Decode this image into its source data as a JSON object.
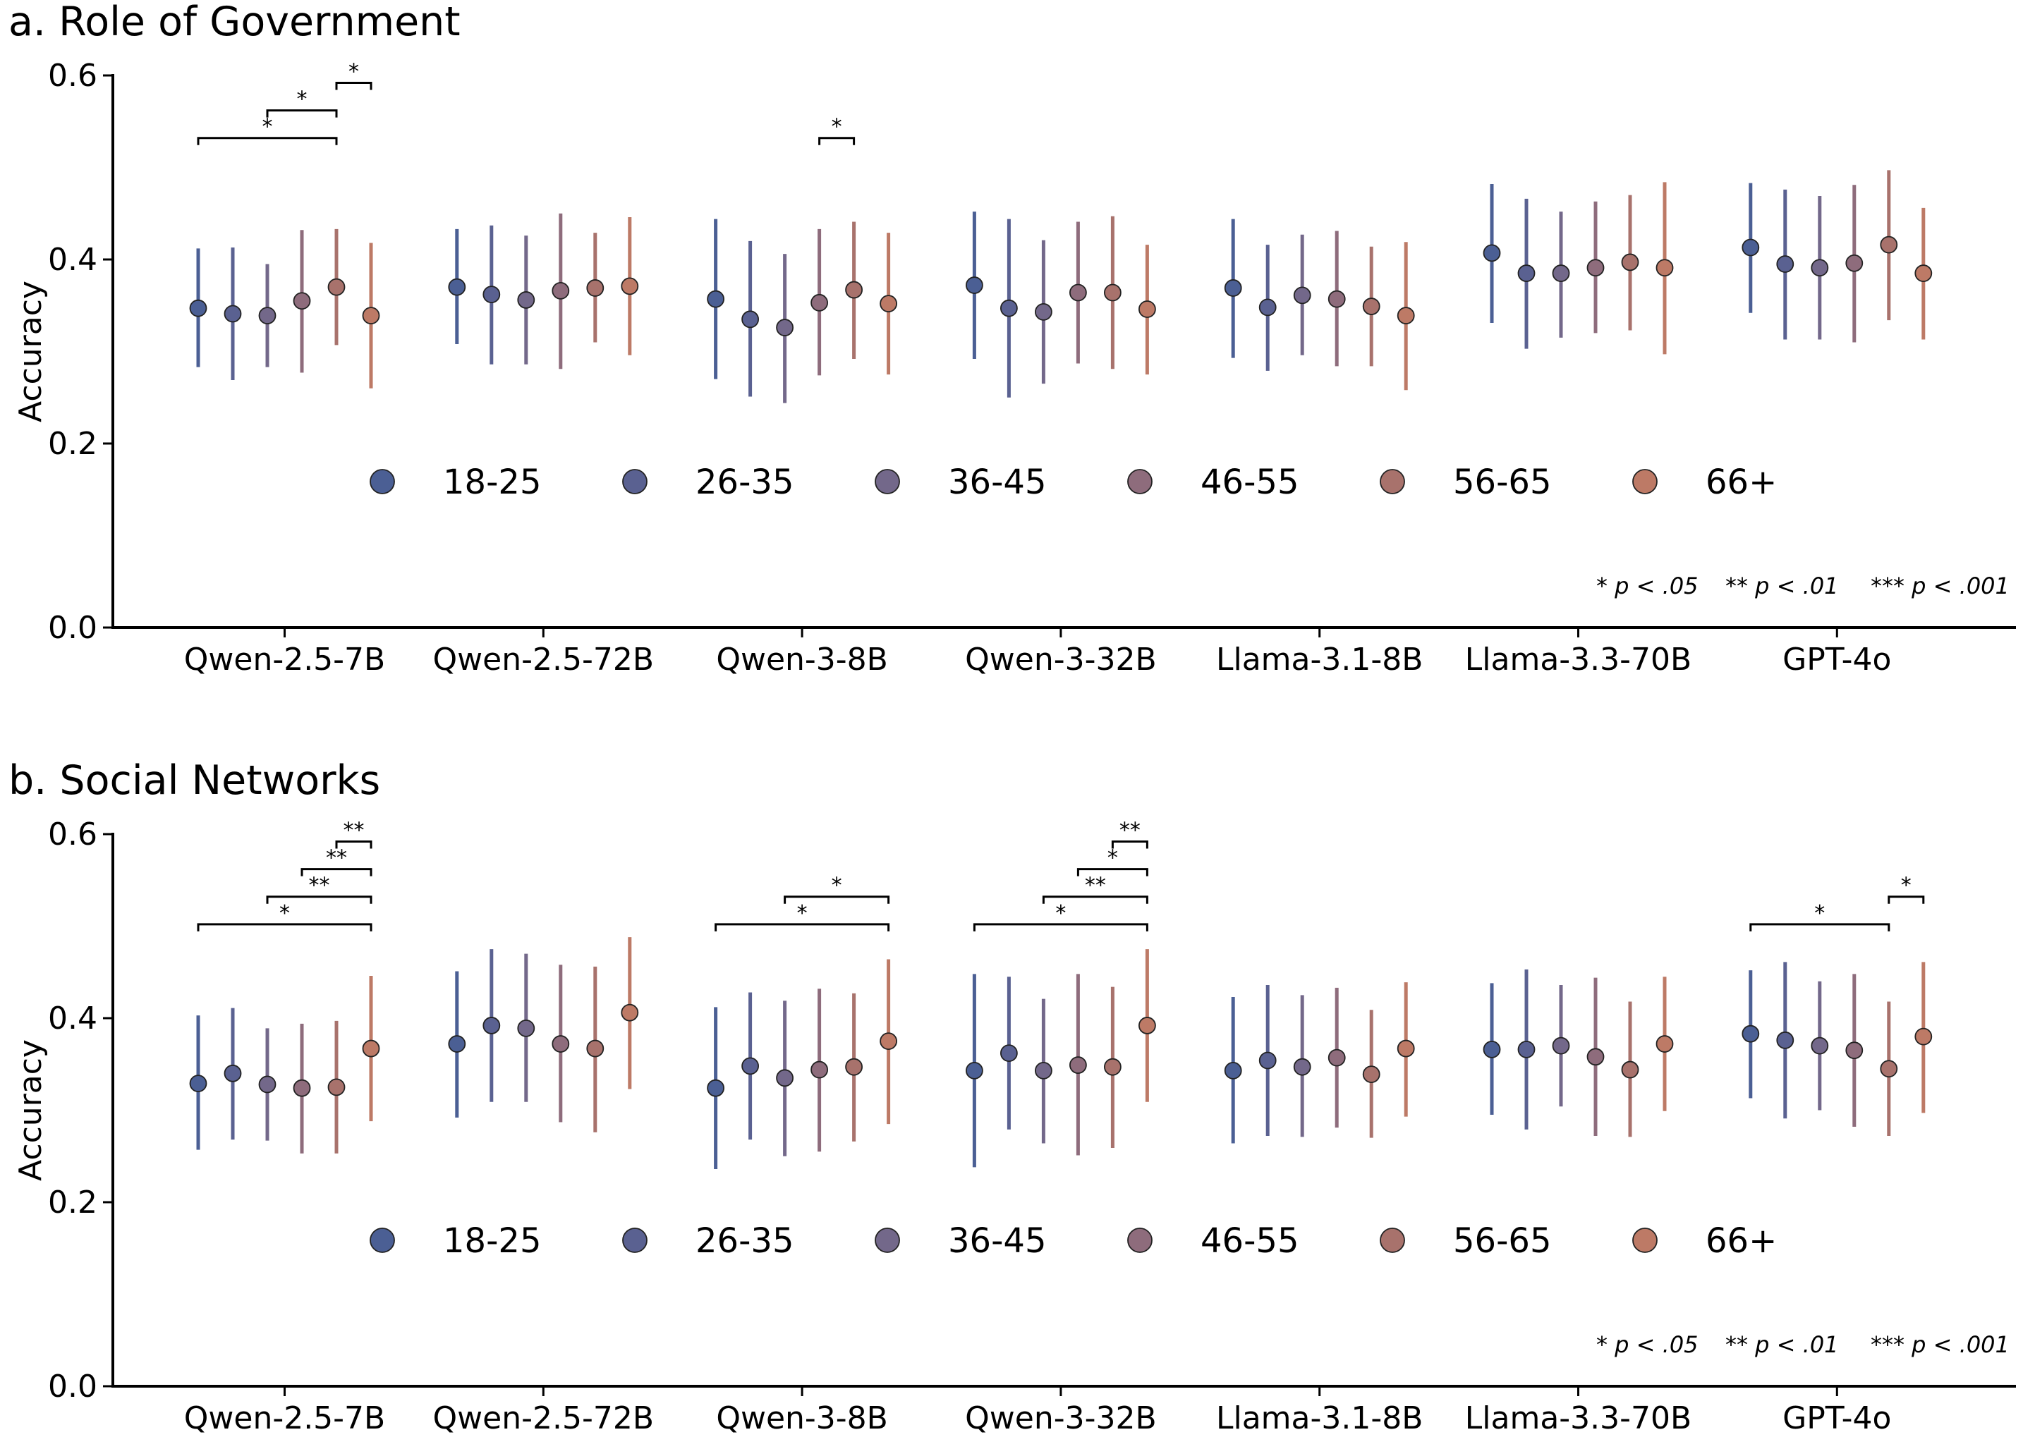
{
  "legend": {
    "groups": [
      "18-25",
      "26-35",
      "36-45",
      "46-55",
      "56-65",
      "66+"
    ],
    "colors": [
      "#4b5f94",
      "#5a6191",
      "#73688a",
      "#8e6c7c",
      "#a8726c",
      "#bd7a66"
    ]
  },
  "significance_note": [
    {
      "stars": "*",
      "text": "p < .05"
    },
    {
      "stars": "**",
      "text": "p < .01"
    },
    {
      "stars": "***",
      "text": "p < .001"
    }
  ],
  "chart_data": [
    {
      "type": "scatter",
      "title": "a. Role of Government",
      "ylabel": "Accuracy",
      "ylim": [
        0,
        0.6
      ],
      "yticks": [
        "0.0",
        "0.2",
        "0.4",
        "0.6"
      ],
      "ytick_values": [
        0,
        0.2,
        0.4,
        0.6
      ],
      "categories": [
        "Qwen-2.5-7B",
        "Qwen-2.5-72B",
        "Qwen-3-8B",
        "Qwen-3-32B",
        "Llama-3.1-8B",
        "Llama-3.3-70B",
        "GPT-4o"
      ],
      "series": [
        {
          "name": "18-25",
          "values": [
            0.347,
            0.37,
            0.357,
            0.372,
            0.369,
            0.407,
            0.413
          ],
          "lower": [
            0.283,
            0.308,
            0.27,
            0.292,
            0.293,
            0.331,
            0.342
          ],
          "upper": [
            0.412,
            0.433,
            0.444,
            0.452,
            0.444,
            0.482,
            0.483
          ]
        },
        {
          "name": "26-35",
          "values": [
            0.341,
            0.362,
            0.335,
            0.347,
            0.348,
            0.385,
            0.395
          ],
          "lower": [
            0.269,
            0.286,
            0.251,
            0.25,
            0.279,
            0.303,
            0.313
          ],
          "upper": [
            0.413,
            0.437,
            0.42,
            0.444,
            0.416,
            0.466,
            0.476
          ]
        },
        {
          "name": "36-45",
          "values": [
            0.339,
            0.356,
            0.326,
            0.343,
            0.361,
            0.385,
            0.391
          ],
          "lower": [
            0.283,
            0.286,
            0.244,
            0.265,
            0.296,
            0.315,
            0.313
          ],
          "upper": [
            0.395,
            0.426,
            0.406,
            0.421,
            0.427,
            0.452,
            0.469
          ]
        },
        {
          "name": "46-55",
          "values": [
            0.355,
            0.366,
            0.353,
            0.364,
            0.357,
            0.391,
            0.396
          ],
          "lower": [
            0.277,
            0.281,
            0.274,
            0.287,
            0.284,
            0.32,
            0.31
          ],
          "upper": [
            0.432,
            0.45,
            0.433,
            0.441,
            0.431,
            0.463,
            0.481
          ]
        },
        {
          "name": "56-65",
          "values": [
            0.37,
            0.369,
            0.367,
            0.364,
            0.349,
            0.397,
            0.416
          ],
          "lower": [
            0.307,
            0.31,
            0.292,
            0.281,
            0.284,
            0.323,
            0.334
          ],
          "upper": [
            0.433,
            0.429,
            0.441,
            0.447,
            0.414,
            0.47,
            0.497
          ]
        },
        {
          "name": "66+",
          "values": [
            0.339,
            0.371,
            0.352,
            0.346,
            0.339,
            0.391,
            0.385
          ],
          "lower": [
            0.26,
            0.296,
            0.275,
            0.275,
            0.258,
            0.297,
            0.313
          ],
          "upper": [
            0.418,
            0.446,
            0.429,
            0.416,
            0.419,
            0.484,
            0.456
          ]
        }
      ],
      "significance": [
        {
          "category": "Qwen-2.5-7B",
          "from": "18-25",
          "to": "56-65",
          "label": "*",
          "level": 0.532
        },
        {
          "category": "Qwen-2.5-7B",
          "from": "36-45",
          "to": "56-65",
          "label": "*",
          "level": 0.562
        },
        {
          "category": "Qwen-2.5-7B",
          "from": "56-65",
          "to": "66+",
          "label": "*",
          "level": 0.592
        },
        {
          "category": "Qwen-3-8B",
          "from": "46-55",
          "to": "56-65",
          "label": "*",
          "level": 0.532
        }
      ]
    },
    {
      "type": "scatter",
      "title": "b. Social Networks",
      "ylabel": "Accuracy",
      "ylim": [
        0,
        0.6
      ],
      "yticks": [
        "0.0",
        "0.2",
        "0.4",
        "0.6"
      ],
      "ytick_values": [
        0,
        0.2,
        0.4,
        0.6
      ],
      "categories": [
        "Qwen-2.5-7B",
        "Qwen-2.5-72B",
        "Qwen-3-8B",
        "Qwen-3-32B",
        "Llama-3.1-8B",
        "Llama-3.3-70B",
        "GPT-4o"
      ],
      "series": [
        {
          "name": "18-25",
          "values": [
            0.329,
            0.372,
            0.324,
            0.343,
            0.343,
            0.366,
            0.383
          ],
          "lower": [
            0.257,
            0.292,
            0.236,
            0.238,
            0.264,
            0.295,
            0.313
          ],
          "upper": [
            0.403,
            0.451,
            0.412,
            0.448,
            0.423,
            0.438,
            0.452
          ]
        },
        {
          "name": "26-35",
          "values": [
            0.34,
            0.392,
            0.348,
            0.362,
            0.354,
            0.366,
            0.376
          ],
          "lower": [
            0.268,
            0.309,
            0.268,
            0.279,
            0.272,
            0.279,
            0.291
          ],
          "upper": [
            0.411,
            0.475,
            0.428,
            0.445,
            0.436,
            0.453,
            0.461
          ]
        },
        {
          "name": "36-45",
          "values": [
            0.328,
            0.389,
            0.335,
            0.343,
            0.347,
            0.37,
            0.37
          ],
          "lower": [
            0.267,
            0.309,
            0.25,
            0.264,
            0.271,
            0.304,
            0.3
          ],
          "upper": [
            0.389,
            0.47,
            0.419,
            0.421,
            0.425,
            0.436,
            0.44
          ]
        },
        {
          "name": "46-55",
          "values": [
            0.324,
            0.372,
            0.344,
            0.349,
            0.357,
            0.358,
            0.365
          ],
          "lower": [
            0.253,
            0.287,
            0.255,
            0.251,
            0.281,
            0.272,
            0.282
          ],
          "upper": [
            0.394,
            0.458,
            0.432,
            0.448,
            0.433,
            0.444,
            0.448
          ]
        },
        {
          "name": "56-65",
          "values": [
            0.325,
            0.367,
            0.347,
            0.347,
            0.339,
            0.344,
            0.345
          ],
          "lower": [
            0.253,
            0.276,
            0.266,
            0.259,
            0.27,
            0.271,
            0.272
          ],
          "upper": [
            0.397,
            0.456,
            0.427,
            0.434,
            0.409,
            0.418,
            0.418
          ]
        },
        {
          "name": "66+",
          "values": [
            0.367,
            0.406,
            0.375,
            0.392,
            0.367,
            0.372,
            0.38
          ],
          "lower": [
            0.288,
            0.323,
            0.285,
            0.309,
            0.293,
            0.299,
            0.297
          ],
          "upper": [
            0.446,
            0.488,
            0.464,
            0.475,
            0.439,
            0.445,
            0.461
          ]
        }
      ],
      "significance": [
        {
          "category": "Qwen-2.5-7B",
          "from": "18-25",
          "to": "66+",
          "label": "*",
          "level": 0.502
        },
        {
          "category": "Qwen-2.5-7B",
          "from": "36-45",
          "to": "66+",
          "label": "**",
          "level": 0.532
        },
        {
          "category": "Qwen-2.5-7B",
          "from": "46-55",
          "to": "66+",
          "label": "**",
          "level": 0.562
        },
        {
          "category": "Qwen-2.5-7B",
          "from": "56-65",
          "to": "66+",
          "label": "**",
          "level": 0.592
        },
        {
          "category": "Qwen-3-8B",
          "from": "18-25",
          "to": "66+",
          "label": "*",
          "level": 0.502
        },
        {
          "category": "Qwen-3-8B",
          "from": "36-45",
          "to": "66+",
          "label": "*",
          "level": 0.532
        },
        {
          "category": "Qwen-3-32B",
          "from": "18-25",
          "to": "66+",
          "label": "*",
          "level": 0.502
        },
        {
          "category": "Qwen-3-32B",
          "from": "36-45",
          "to": "66+",
          "label": "**",
          "level": 0.532
        },
        {
          "category": "Qwen-3-32B",
          "from": "46-55",
          "to": "66+",
          "label": "*",
          "level": 0.562
        },
        {
          "category": "Qwen-3-32B",
          "from": "56-65",
          "to": "66+",
          "label": "**",
          "level": 0.592
        },
        {
          "category": "GPT-4o",
          "from": "18-25",
          "to": "56-65",
          "label": "*",
          "level": 0.502
        },
        {
          "category": "GPT-4o",
          "from": "56-65",
          "to": "66+",
          "label": "*",
          "level": 0.532
        }
      ]
    }
  ]
}
